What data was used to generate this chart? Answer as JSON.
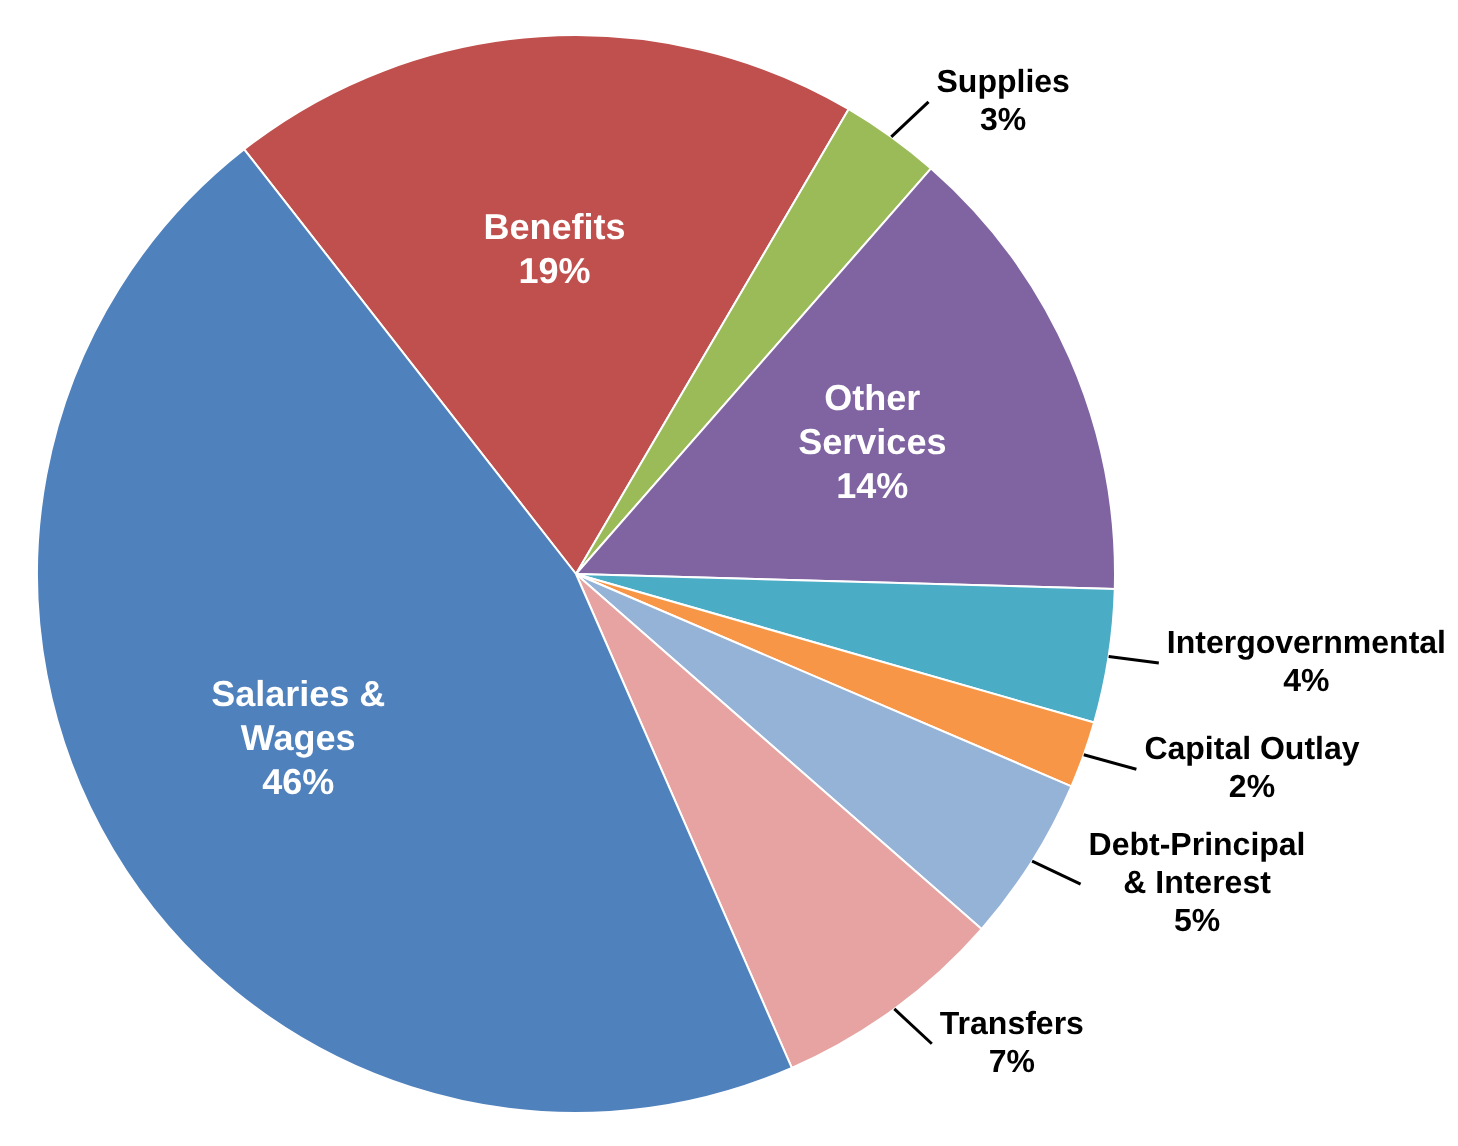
{
  "chart_data": {
    "type": "pie",
    "categories": [
      "Benefits",
      "Supplies",
      "Other Services",
      "Intergovernmental",
      "Capital Outlay",
      "Debt-Principal & Interest",
      "Transfers",
      "Salaries & Wages"
    ],
    "values": [
      19,
      3,
      14,
      4,
      2,
      5,
      7,
      46
    ],
    "value_labels": [
      "19%",
      "3%",
      "14%",
      "4%",
      "2%",
      "5%",
      "7%",
      "46%"
    ],
    "colors": [
      "#c0504d",
      "#9bbb59",
      "#8064a2",
      "#4bacc6",
      "#f79646",
      "#95b3d7",
      "#e6a3a1",
      "#4f81bd"
    ],
    "legend": false
  }
}
